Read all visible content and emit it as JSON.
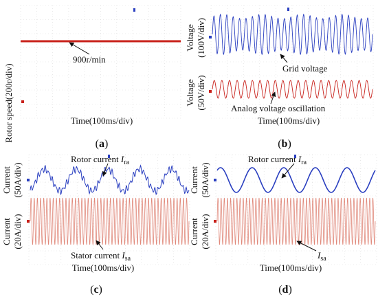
{
  "colors": {
    "red": "#c8201a",
    "blue": "#2a3fc0",
    "pink": "#e0887a",
    "grid": "#d9d9d9"
  },
  "chart_data": [
    {
      "panel": "(a)",
      "type": "line",
      "ylabel": "Rotor speed(200r/div)",
      "xlabel": "Time(100ms/div)",
      "series": [
        {
          "name": "",
          "value": 900,
          "unit": "r/min"
        }
      ],
      "annotations": [
        "900r/min"
      ],
      "sublabel": {
        "pre": "(",
        "mid": "a",
        "post": ")"
      }
    },
    {
      "panel": "(b)",
      "type": "line",
      "xlabel": "Time(100ms/div)",
      "traces": [
        {
          "ylabel_1": "Voltage",
          "ylabel_2": "(100V/div)",
          "annotation": "Grid voltage",
          "cycles": 25
        },
        {
          "ylabel_1": "Voltage",
          "ylabel_2": "(50V/div)",
          "annotation": "Analog voltage oscillation",
          "cycles": 21
        }
      ],
      "sublabel": {
        "pre": "(",
        "mid": "b",
        "post": ")"
      }
    },
    {
      "panel": "(c)",
      "type": "line",
      "xlabel": "Time(100ms/div)",
      "traces": [
        {
          "ylabel_1": "Current",
          "ylabel_2": "(50A/div)",
          "annotation_main": "Rotor current ",
          "annotation_var": "I",
          "annotation_sub": "ra",
          "cycles": 5
        },
        {
          "ylabel_1": "Current",
          "ylabel_2": "(20A/div)",
          "annotation_main": "Stator current ",
          "annotation_var": "I",
          "annotation_sub": "sa",
          "cycles": 50
        }
      ],
      "sublabel": {
        "pre": "(",
        "mid": "c",
        "post": ")"
      }
    },
    {
      "panel": "(d)",
      "type": "line",
      "xlabel": "Time(100ms/div)",
      "traces": [
        {
          "ylabel_1": "Current",
          "ylabel_2": "(50A/div)",
          "annotation_main": "Rotor current ",
          "annotation_var": "I",
          "annotation_sub": "ra",
          "cycles": 5
        },
        {
          "ylabel_1": "Current",
          "ylabel_2": "(20A/div)",
          "annotation_main": "",
          "annotation_var": "I",
          "annotation_sub": "sa",
          "cycles": 50
        }
      ],
      "sublabel": {
        "pre": "(",
        "mid": "d",
        "post": ")"
      }
    }
  ]
}
